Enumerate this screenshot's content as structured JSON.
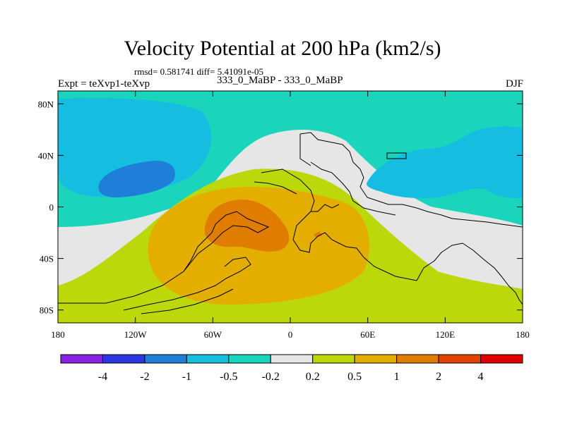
{
  "chart_data": {
    "type": "contour-map",
    "title": "Velocity Potential at 200 hPa (km2/s)",
    "stats_text": "rmsd= 0.581741 diff= 5.41091e-05",
    "left_label": "Expt = teXvp1-teXvp",
    "center_label": "333_0_MaBP - 333_0_MaBP",
    "right_label": "DJF",
    "x_ticks": [
      "180",
      "120W",
      "60W",
      "0",
      "60E",
      "120E",
      "180"
    ],
    "x_tick_values": [
      -180,
      -120,
      -60,
      0,
      60,
      120,
      180
    ],
    "y_ticks": [
      "80N",
      "40N",
      "0",
      "40S",
      "80S"
    ],
    "y_tick_values": [
      80,
      40,
      0,
      -40,
      -80
    ],
    "xlim": [
      -180,
      180
    ],
    "ylim": [
      -90,
      90
    ],
    "colorbar": {
      "levels": [
        "-4",
        "-2",
        "-1",
        "-0.5",
        "-0.2",
        "0.2",
        "0.5",
        "1",
        "2",
        "4"
      ],
      "colors": [
        "#8a22e0",
        "#2b36e0",
        "#1f7fd8",
        "#15bde0",
        "#1ad5bb",
        "#e6e6e6",
        "#bcd80a",
        "#e3ae00",
        "#e07c00",
        "#e04400",
        "#e00000"
      ]
    },
    "shading": [
      {
        "band": "-1 to -0.5",
        "region": "North Pacific high latitudes"
      },
      {
        "band": "-2 to -1",
        "region": "North Pacific core"
      },
      {
        "band": "-1 to -0.5",
        "region": "Southeast Asia / West Pacific"
      },
      {
        "band": "-0.5 to -0.2",
        "region": "Northern Hemisphere background"
      },
      {
        "band": "-0.2 to 0.2",
        "region": "Tropical belt and Eurasia"
      },
      {
        "band": "0.2 to 0.5",
        "region": "Southern Hemisphere and Americas"
      },
      {
        "band": "0.5 to 1",
        "region": "South America / South Atlantic / Africa"
      },
      {
        "band": "1 to 2",
        "region": "Amazon core"
      }
    ]
  }
}
